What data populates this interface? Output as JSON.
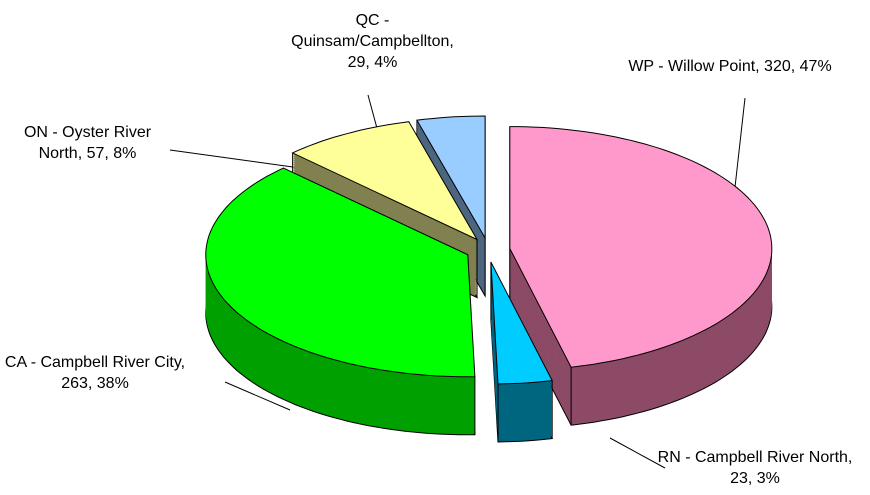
{
  "chart_data": {
    "type": "pie3d",
    "values": [
      320,
      23,
      263,
      57,
      29
    ],
    "value_labels": [
      "WP - Willow Point, 320, 47%",
      "RN - Campbell River North, 23, 3%",
      "CA - Campbell River City, 263, 38%",
      "ON - Oyster River North, 57, 8%",
      "QC - Quinsam/Campbellton, 29, 4%"
    ],
    "colors": [
      "#ff99cc",
      "#00ccff",
      "#00ff00",
      "#ffff99",
      "#99ccff"
    ],
    "side_colors": [
      "#8c4a66",
      "#006680",
      "#00a000",
      "#808050",
      "#4d6680"
    ]
  }
}
